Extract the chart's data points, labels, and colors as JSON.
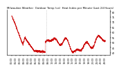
{
  "title": "Milwaukee Weather  Outdoor Temp (vs)  Heat Index per Minute (Last 24 Hours)",
  "line_color": "#cc0000",
  "bg_color": "#ffffff",
  "ylim": [
    38,
    82
  ],
  "yticks": [
    40,
    45,
    50,
    55,
    60,
    65,
    70,
    75,
    80
  ],
  "vline_color": "#aaaaaa",
  "title_fontsize": 2.8,
  "tick_fontsize": 2.4,
  "num_points": 1440
}
